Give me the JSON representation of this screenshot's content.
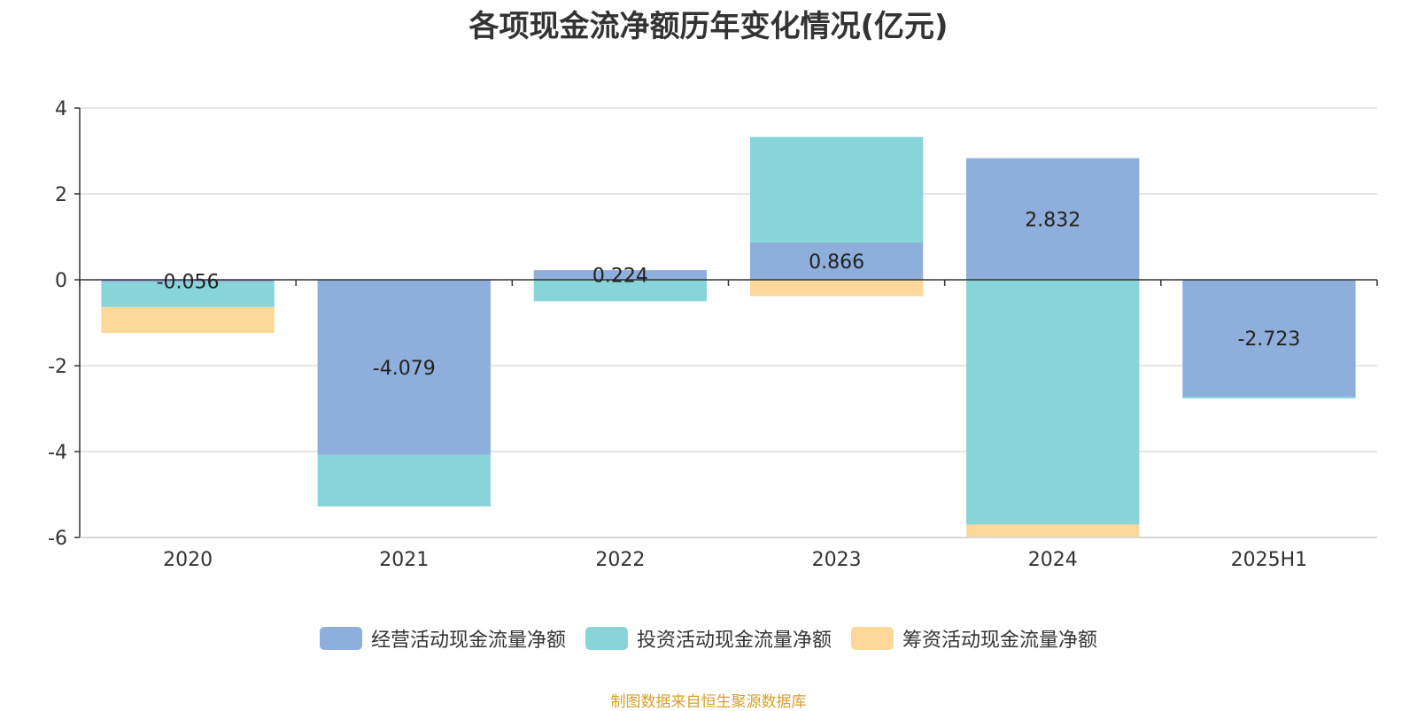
{
  "source_note": "制图数据来自恒生聚源数据库",
  "colors": {
    "operating": "#8eaedb",
    "investing": "#87d5d8",
    "financing": "#fdd89a",
    "grid": "#cccccc",
    "axis": "#333333"
  },
  "chart_data": {
    "type": "bar",
    "stacked": true,
    "title": "各项现金流净额历年变化情况(亿元)",
    "xlabel": "",
    "ylabel": "",
    "categories": [
      "2020",
      "2021",
      "2022",
      "2023",
      "2024",
      "2025H1"
    ],
    "ylim": [
      -6,
      4
    ],
    "yticks": [
      4,
      2,
      0,
      -2,
      -4,
      -6
    ],
    "grid": true,
    "legend_position": "bottom",
    "series": [
      {
        "name": "经营活动现金流量净额",
        "color_key": "operating",
        "values": [
          -0.056,
          -4.079,
          0.224,
          0.866,
          2.832,
          -2.723
        ],
        "labels": [
          "-0.056",
          "-4.079",
          "0.224",
          "0.866",
          "2.832",
          "-2.723"
        ]
      },
      {
        "name": "投资活动现金流量净额",
        "color_key": "investing",
        "values": [
          -0.58,
          -1.2,
          -0.5,
          2.46,
          -5.7,
          -0.04
        ]
      },
      {
        "name": "筹资活动现金流量净额",
        "color_key": "financing",
        "values": [
          -0.6,
          0,
          0,
          -0.38,
          -0.28,
          0
        ]
      }
    ]
  }
}
